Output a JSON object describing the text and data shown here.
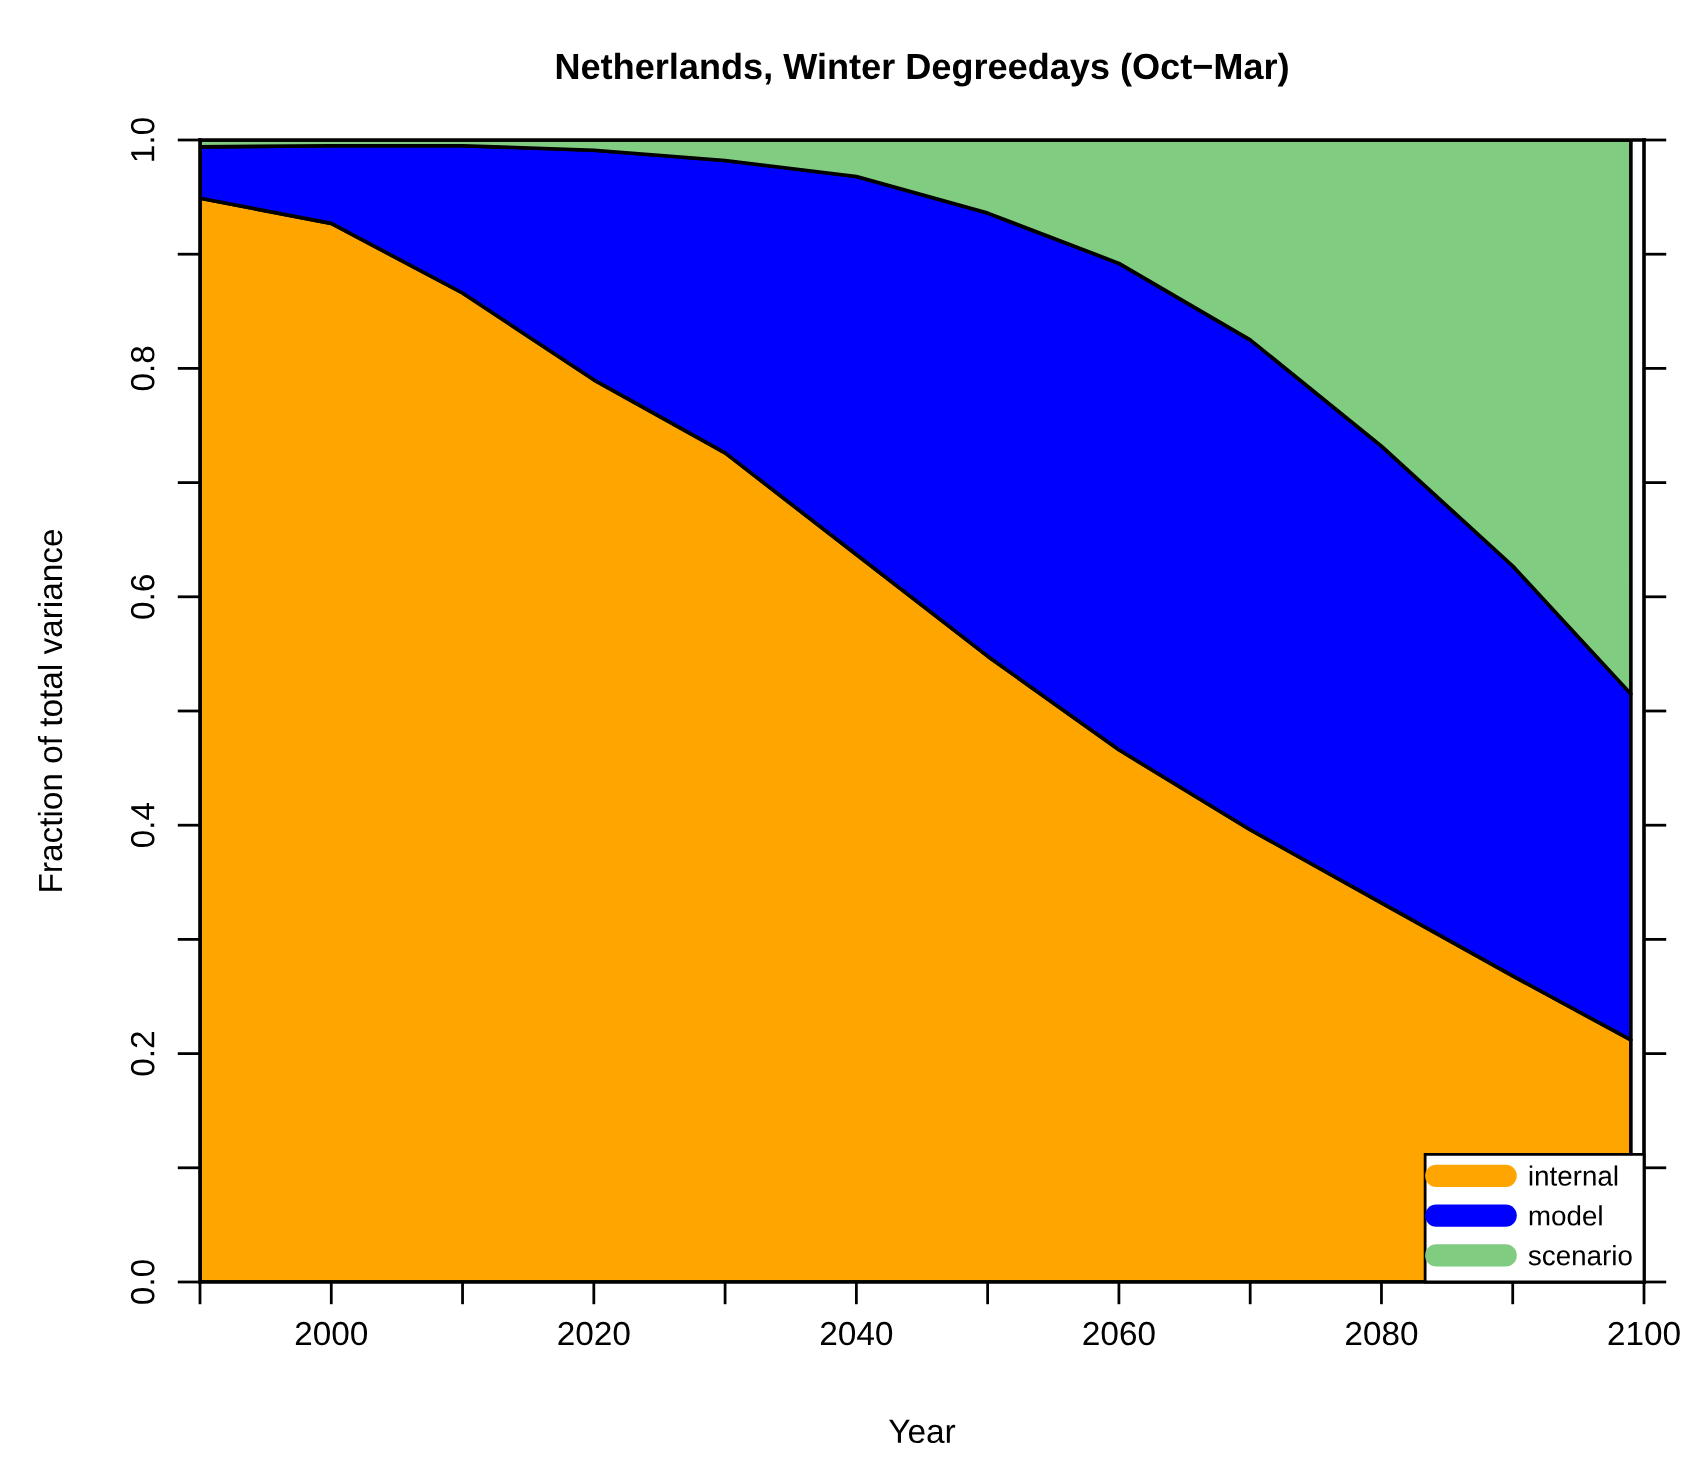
{
  "chart_data": {
    "type": "area",
    "stacked": true,
    "title": "Netherlands, Winter Degreedays (Oct−Mar)",
    "xlabel": "Year",
    "ylabel": "Fraction of total variance",
    "x": [
      1990,
      2000,
      2010,
      2020,
      2030,
      2040,
      2050,
      2060,
      2070,
      2080,
      2090,
      2099
    ],
    "series": [
      {
        "name": "internal",
        "color": "#ffa500",
        "values": [
          0.949,
          0.927,
          0.866,
          0.79,
          0.726,
          0.637,
          0.548,
          0.466,
          0.396,
          0.332,
          0.268,
          0.212
        ]
      },
      {
        "name": "model",
        "color": "#0000ff",
        "values": [
          0.045,
          0.068,
          0.129,
          0.201,
          0.256,
          0.331,
          0.388,
          0.426,
          0.429,
          0.4,
          0.359,
          0.303
        ]
      },
      {
        "name": "scenario",
        "color": "#80cc80",
        "values": [
          0.006,
          0.005,
          0.005,
          0.009,
          0.018,
          0.032,
          0.064,
          0.108,
          0.175,
          0.268,
          0.373,
          0.485
        ]
      }
    ],
    "xlim": [
      1990,
      2100
    ],
    "xticks": [
      {
        "value": 1990,
        "label": null
      },
      2000,
      {
        "value": 2010,
        "label": null
      },
      2020,
      {
        "value": 2030,
        "label": null
      },
      2040,
      {
        "value": 2050,
        "label": null
      },
      2060,
      {
        "value": 2070,
        "label": null
      },
      2080,
      {
        "value": 2090,
        "label": null
      },
      2100
    ],
    "ylim": [
      0,
      1
    ],
    "yticks": [
      {
        "value": 0,
        "label": "0.0"
      },
      {
        "value": 0.1,
        "label": null
      },
      {
        "value": 0.2,
        "label": "0.2"
      },
      {
        "value": 0.3,
        "label": null
      },
      {
        "value": 0.4,
        "label": "0.4"
      },
      {
        "value": 0.5,
        "label": null
      },
      {
        "value": 0.6,
        "label": "0.6"
      },
      {
        "value": 0.7,
        "label": null
      },
      {
        "value": 0.8,
        "label": "0.8"
      },
      {
        "value": 0.9,
        "label": null
      },
      {
        "value": 1,
        "label": "1.0"
      }
    ],
    "grid": false,
    "legend": "bottom right"
  }
}
